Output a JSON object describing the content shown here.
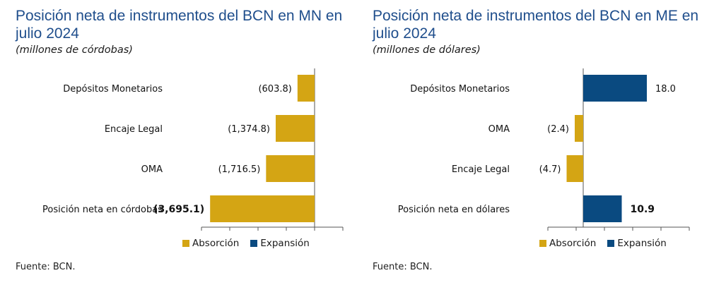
{
  "colors": {
    "absorcion": "#d4a514",
    "expansion": "#0a4a80",
    "axis": "#555555"
  },
  "legend": {
    "absorcion": "Absorción",
    "expansion": "Expansión"
  },
  "fuente": "Fuente: BCN.",
  "chart_data": [
    {
      "type": "bar",
      "orientation": "horizontal",
      "title": "Posición neta de instrumentos del BCN en MN en julio 2024",
      "subtitle": "(millones de córdobas)",
      "categories": [
        "Depósitos Monetarios",
        "Encaje Legal",
        "OMA",
        "Posición neta en córdobas"
      ],
      "values": [
        -603.8,
        -1374.8,
        -1716.5,
        -3695.1
      ],
      "value_labels": [
        "(603.8)",
        "(1,374.8)",
        "(1,716.5)",
        "(3,695.1)"
      ],
      "bold_last": true,
      "xlim": [
        -4000,
        1000
      ],
      "grid": false,
      "legend_position": "bottom"
    },
    {
      "type": "bar",
      "orientation": "horizontal",
      "title": "Posición neta de instrumentos del BCN en ME en julio 2024",
      "subtitle": "(millones de dólares)",
      "categories": [
        "Depósitos Monetarios",
        "OMA",
        "Encaje Legal",
        "Posición neta en dólares"
      ],
      "values": [
        18.0,
        -2.4,
        -4.7,
        10.9
      ],
      "value_labels": [
        "18.0",
        "(2.4)",
        "(4.7)",
        "10.9"
      ],
      "bold_last": true,
      "xlim": [
        -10,
        30
      ],
      "grid": false,
      "legend_position": "bottom"
    }
  ]
}
